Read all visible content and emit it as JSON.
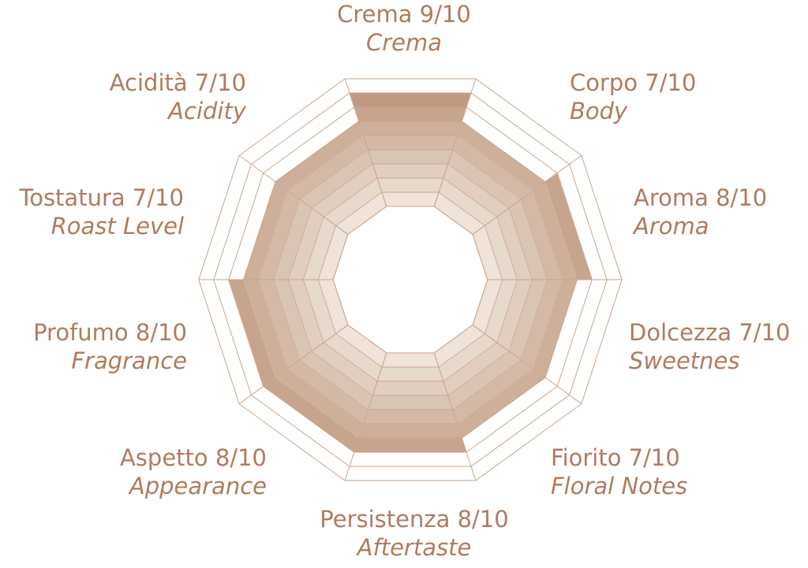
{
  "chart_data": {
    "type": "radar",
    "categories": [
      "Crema",
      "Corpo",
      "Aroma",
      "Dolcezza",
      "Fiorito",
      "Persistenza",
      "Aspetto",
      "Profumo",
      "Tostatura",
      "Acidità"
    ],
    "subtitles": [
      "Crema",
      "Body",
      "Aroma",
      "Sweetnes",
      "Floral Notes",
      "Aftertaste",
      "Appearance",
      "Fragrance",
      "Roast Level",
      "Acidity"
    ],
    "values": [
      9,
      7,
      8,
      7,
      7,
      8,
      8,
      8,
      7,
      7
    ],
    "value_labels": [
      "9/10",
      "7/10",
      "8/10",
      "7/10",
      "7/10",
      "8/10",
      "8/10",
      "8/10",
      "7/10",
      "7/10"
    ],
    "rlim": [
      1,
      10
    ],
    "rticks": [
      1,
      2,
      3,
      4,
      5,
      6,
      7,
      8,
      9,
      10
    ],
    "color": "#b88f74"
  }
}
